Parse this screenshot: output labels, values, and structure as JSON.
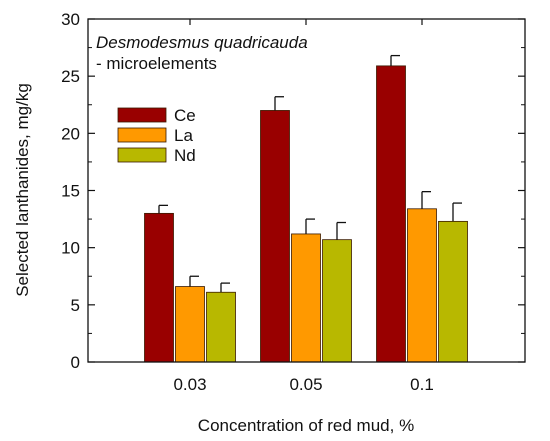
{
  "chart_data": {
    "type": "bar",
    "title": "",
    "xlabel": "Concentration of red mud, %",
    "ylabel": "Selected lanthanides, mg/kg",
    "categories": [
      "0.03",
      "0.05",
      "0.1"
    ],
    "ylim": [
      0,
      30
    ],
    "yticks": [
      0,
      5,
      10,
      15,
      20,
      25,
      30
    ],
    "grid": false,
    "legend_position": "top-left",
    "annotation": {
      "species": "Desmodesmus quadricauda",
      "subtitle": "- microelements"
    },
    "series": [
      {
        "name": "Ce",
        "color": "#990000",
        "values": [
          13.0,
          22.0,
          25.9
        ],
        "errors": [
          0.7,
          1.2,
          0.9
        ]
      },
      {
        "name": "La",
        "color": "#ff9900",
        "values": [
          6.6,
          11.2,
          13.4
        ],
        "errors": [
          0.9,
          1.3,
          1.5
        ]
      },
      {
        "name": "Nd",
        "color": "#b8b800",
        "values": [
          6.1,
          10.7,
          12.3
        ],
        "errors": [
          0.8,
          1.5,
          1.6
        ]
      }
    ]
  }
}
